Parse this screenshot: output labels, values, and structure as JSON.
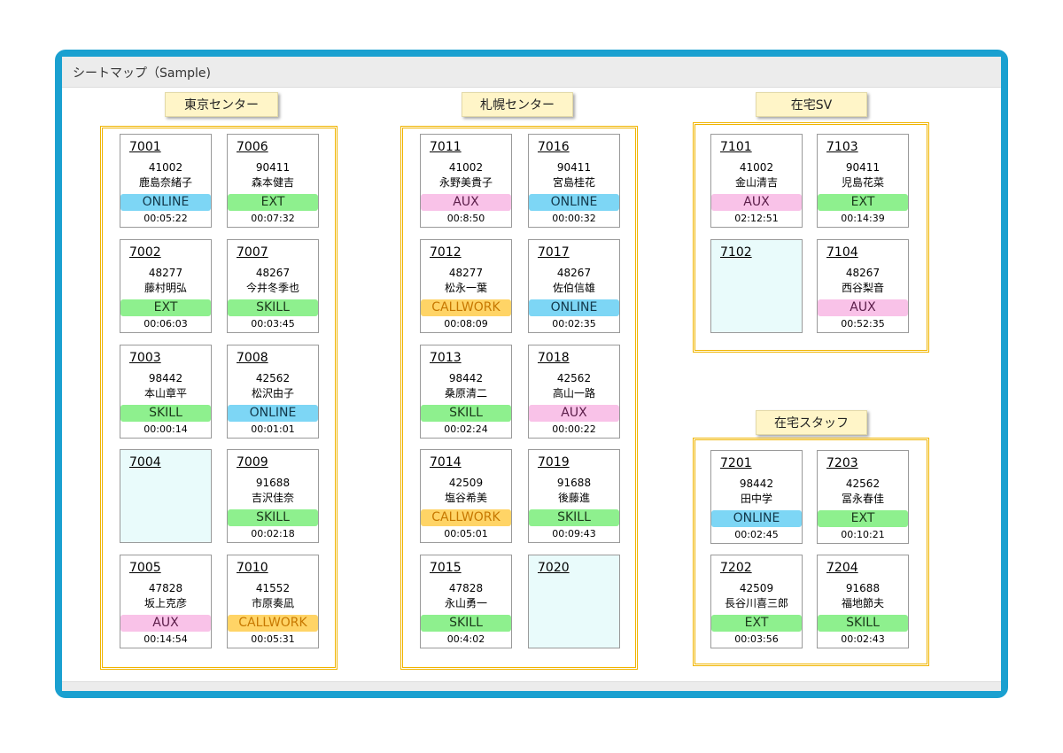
{
  "title": "シートマップ（Sample)",
  "groups": [
    {
      "name": "東京センター",
      "seats": [
        {
          "num": "7001",
          "id": "41002",
          "name": "鹿島奈緒子",
          "status": "ONLINE",
          "time": "00:05:22"
        },
        {
          "num": "7006",
          "id": "90411",
          "name": "森本健吉",
          "status": "EXT",
          "time": "00:07:32"
        },
        {
          "num": "7002",
          "id": "48277",
          "name": "藤村明弘",
          "status": "EXT",
          "time": "00:06:03"
        },
        {
          "num": "7007",
          "id": "48267",
          "name": "今井冬季也",
          "status": "SKILL",
          "time": "00:03:45"
        },
        {
          "num": "7003",
          "id": "98442",
          "name": "本山章平",
          "status": "SKILL",
          "time": "00:00:14"
        },
        {
          "num": "7008",
          "id": "42562",
          "name": "松沢由子",
          "status": "ONLINE",
          "time": "00:01:01"
        },
        {
          "num": "7004",
          "id": "",
          "name": "",
          "status": "",
          "time": ""
        },
        {
          "num": "7009",
          "id": "91688",
          "name": "吉沢佳奈",
          "status": "SKILL",
          "time": "00:02:18"
        },
        {
          "num": "7005",
          "id": "47828",
          "name": "坂上克彦",
          "status": "AUX",
          "time": "00:14:54"
        },
        {
          "num": "7010",
          "id": "41552",
          "name": "市原奏凪",
          "status": "CALLWORK",
          "time": "00:05:31"
        }
      ]
    },
    {
      "name": "札幌センター",
      "seats": [
        {
          "num": "7011",
          "id": "41002",
          "name": "永野美貴子",
          "status": "AUX",
          "time": "00:8:50"
        },
        {
          "num": "7016",
          "id": "90411",
          "name": "宮島桂花",
          "status": "ONLINE",
          "time": "00:00:32"
        },
        {
          "num": "7012",
          "id": "48277",
          "name": "松永一葉",
          "status": "CALLWORK",
          "time": "00:08:09"
        },
        {
          "num": "7017",
          "id": "48267",
          "name": "佐伯信雄",
          "status": "ONLINE",
          "time": "00:02:35"
        },
        {
          "num": "7013",
          "id": "98442",
          "name": "桑原清二",
          "status": "SKILL",
          "time": "00:02:24"
        },
        {
          "num": "7018",
          "id": "42562",
          "name": "高山一路",
          "status": "AUX",
          "time": "00:00:22"
        },
        {
          "num": "7014",
          "id": "42509",
          "name": "塩谷希美",
          "status": "CALLWORK",
          "time": "00:05:01"
        },
        {
          "num": "7019",
          "id": "91688",
          "name": "後藤進",
          "status": "SKILL",
          "time": "00:09:43"
        },
        {
          "num": "7015",
          "id": "47828",
          "name": "永山勇一",
          "status": "SKILL",
          "time": "00:4:02"
        },
        {
          "num": "7020",
          "id": "",
          "name": "",
          "status": "",
          "time": ""
        }
      ]
    },
    {
      "name": "在宅SV",
      "seats": [
        {
          "num": "7101",
          "id": "41002",
          "name": "金山清吉",
          "status": "AUX",
          "time": "02:12:51"
        },
        {
          "num": "7103",
          "id": "90411",
          "name": "児島花菜",
          "status": "EXT",
          "time": "00:14:39"
        },
        {
          "num": "7102",
          "id": "",
          "name": "",
          "status": "",
          "time": ""
        },
        {
          "num": "7104",
          "id": "48267",
          "name": "西谷梨音",
          "status": "AUX",
          "time": "00:52:35"
        }
      ]
    },
    {
      "name": "在宅スタッフ",
      "seats": [
        {
          "num": "7201",
          "id": "98442",
          "name": "田中学",
          "status": "ONLINE",
          "time": "00:02:45"
        },
        {
          "num": "7203",
          "id": "42562",
          "name": "冨永春佳",
          "status": "EXT",
          "time": "00:10:21"
        },
        {
          "num": "7202",
          "id": "42509",
          "name": "長谷川喜三郎",
          "status": "EXT",
          "time": "00:03:56"
        },
        {
          "num": "7204",
          "id": "91688",
          "name": "福地節夫",
          "status": "SKILL",
          "time": "00:02:43"
        }
      ]
    }
  ]
}
